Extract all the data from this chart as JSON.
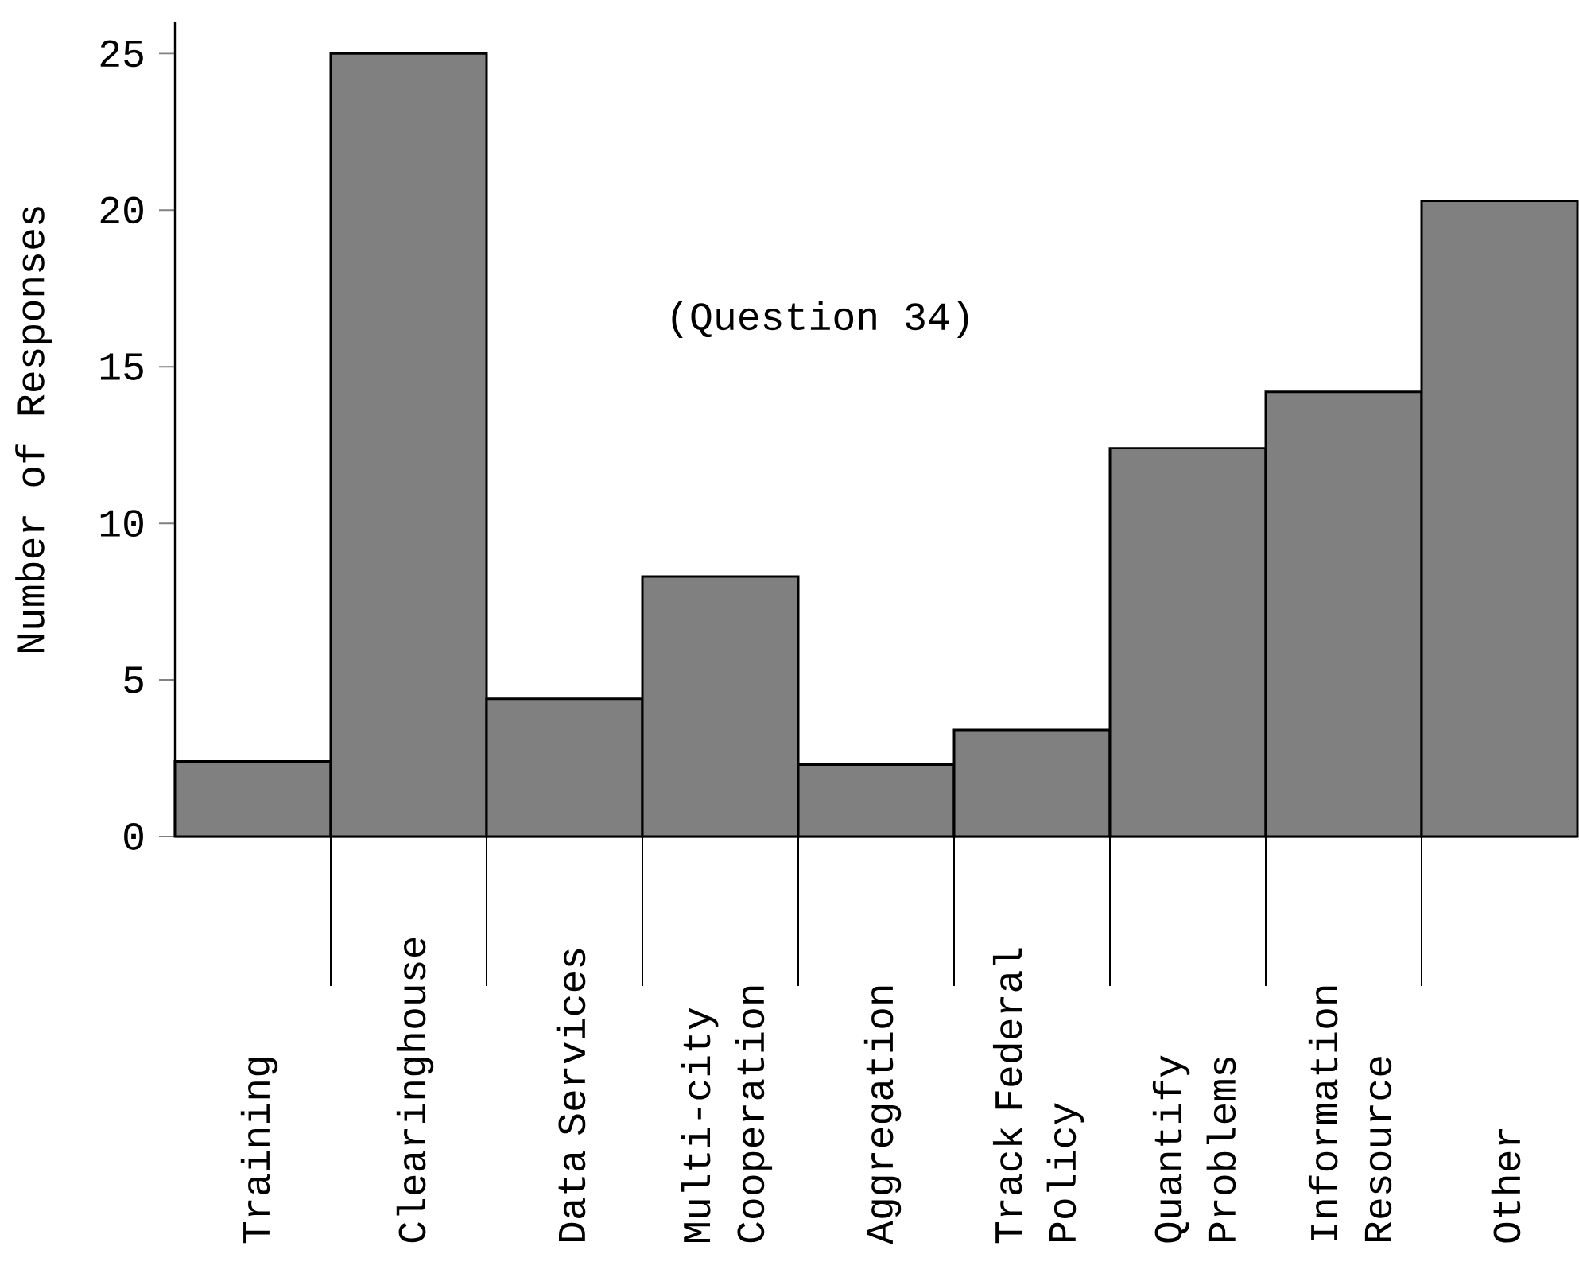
{
  "chart_data": {
    "type": "bar",
    "ylabel": "Number of Responses",
    "annotations": [
      "(Question 34)"
    ],
    "categories": [
      "Training",
      "Clearinghouse",
      "Data Services",
      "Multi-city Cooperation",
      "Aggregation",
      "Track Federal Policy",
      "Quantify Problems",
      "Information Resource",
      "Other"
    ],
    "values": [
      2.4,
      25,
      4.4,
      8.3,
      2.3,
      3.4,
      12.4,
      14.2,
      20.3
    ],
    "color": "#808080",
    "ylim": [
      0,
      26
    ],
    "yticks": [
      0,
      5,
      10,
      15,
      20,
      25
    ],
    "grid": false
  }
}
